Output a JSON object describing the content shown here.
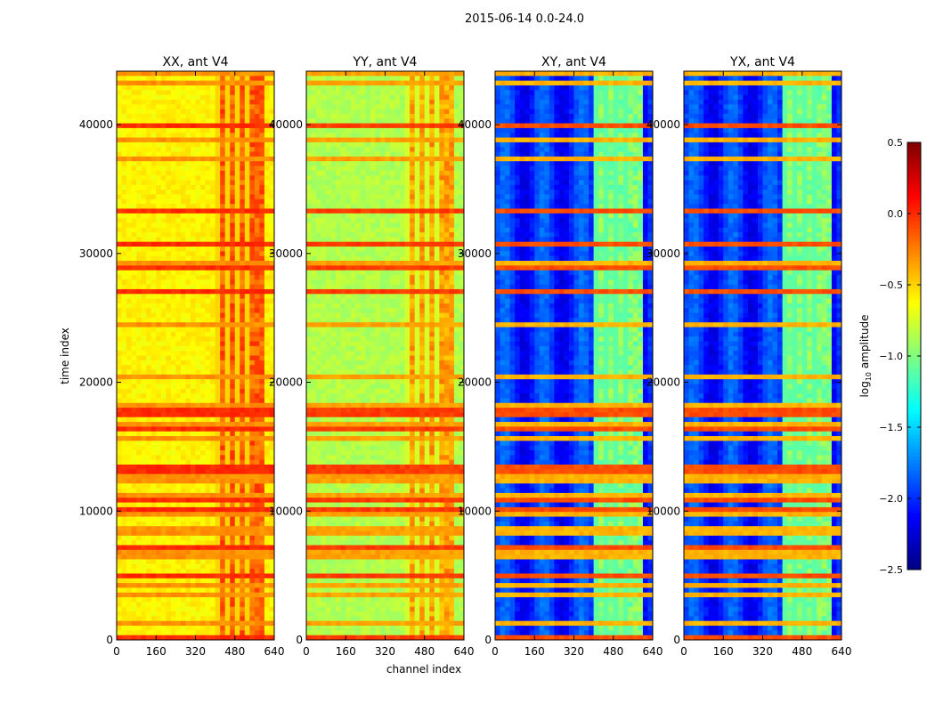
{
  "chart_data": {
    "type": "heatmap",
    "title": "2015-06-14 0.0-24.0",
    "xlabel": "channel index",
    "ylabel": "time index",
    "xlim": [
      0,
      640
    ],
    "ylim": [
      0,
      44150
    ],
    "xticks": [
      "0",
      "160",
      "320",
      "480",
      "640"
    ],
    "yticks": [
      "0",
      "10000",
      "20000",
      "30000",
      "40000"
    ],
    "panels": [
      {
        "title": "XX, ant V4",
        "background_level": -0.6,
        "rfi_channel_level": -0.15,
        "stripe_level": 0.0
      },
      {
        "title": "YY, ant V4",
        "background_level": -0.85,
        "rfi_channel_level": -0.35,
        "stripe_level": -0.05
      },
      {
        "title": "XY, ant V4",
        "background_level": -2.0,
        "rfi_channel_level": -1.0,
        "stripe_level": -0.1
      },
      {
        "title": "YX, ant V4",
        "background_level": -2.0,
        "rfi_channel_level": -1.0,
        "stripe_level": -0.1
      }
    ],
    "rfi_channel_range": [
      410,
      600
    ],
    "colorbar": {
      "label": "log10 amplitude",
      "label_main": "log",
      "label_sub": "10",
      "label_rest": " amplitude",
      "range": [
        -2.5,
        0.5
      ],
      "colormap": "jet",
      "ticks": [
        "0.5",
        "0.0",
        "−0.5",
        "−1.0",
        "−1.5",
        "−2.0",
        "−2.5"
      ]
    }
  }
}
